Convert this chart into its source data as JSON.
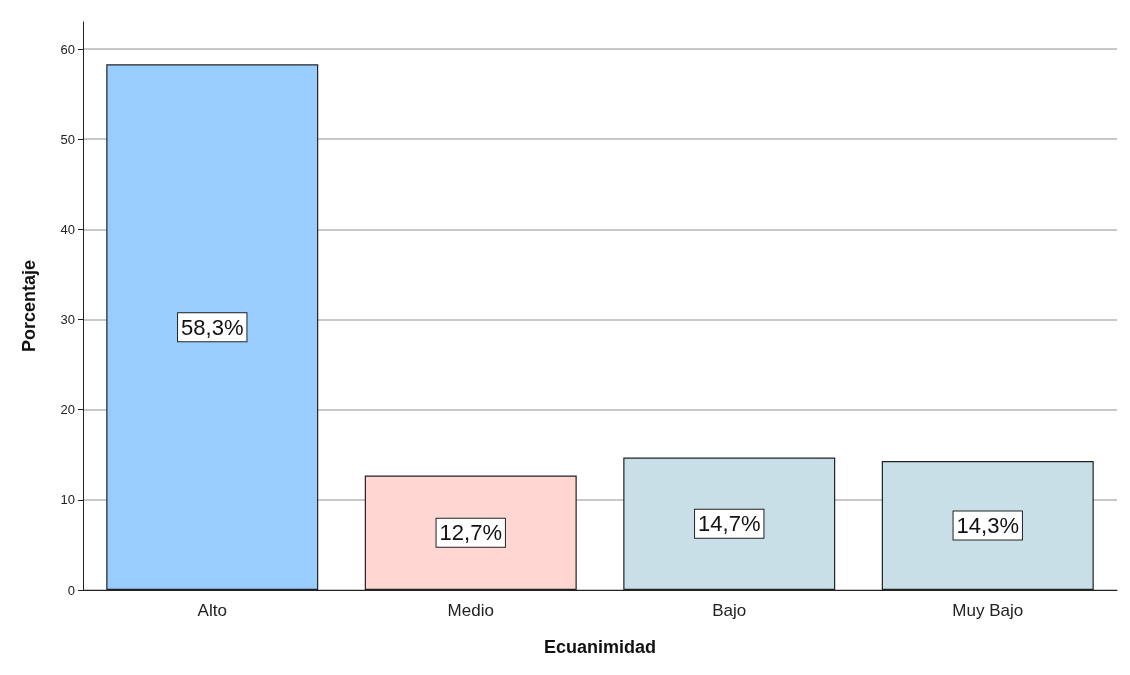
{
  "chart_data": {
    "type": "bar",
    "xlabel": "Ecuanimidad",
    "ylabel": "Porcentaje",
    "categories": [
      "Alto",
      "Medio",
      "Bajo",
      "Muy Bajo"
    ],
    "values": [
      58.3,
      12.7,
      14.7,
      14.3
    ],
    "value_labels": [
      "58,3%",
      "12,7%",
      "14,7%",
      "14,3%"
    ],
    "colors": [
      "#99ccff",
      "#ffd6d2",
      "#c8dfe8",
      "#c8dfe8"
    ],
    "ylim": [
      0,
      63
    ],
    "yticks": [
      0,
      10,
      20,
      30,
      40,
      50,
      60
    ],
    "grid": "y"
  }
}
